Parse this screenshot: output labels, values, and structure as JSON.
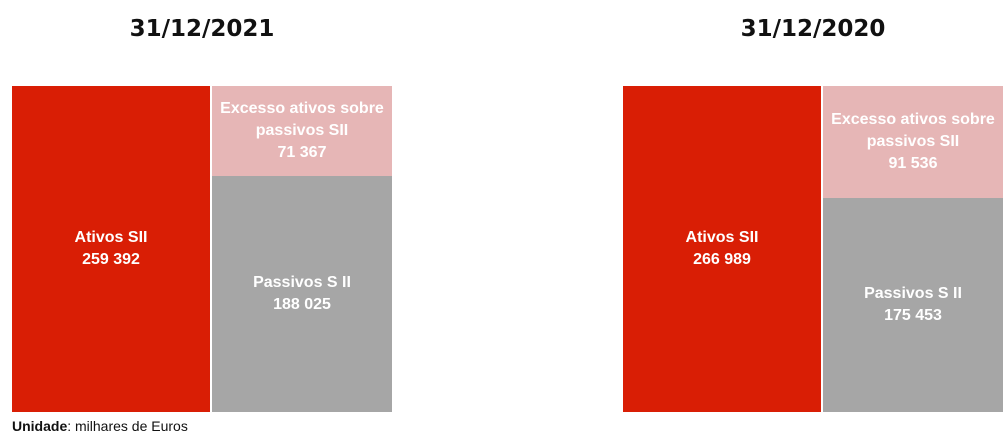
{
  "chart_data": [
    {
      "type": "balance",
      "title": "31/12/2021",
      "series": [
        {
          "name": "Ativos SII",
          "color": "#d91e05",
          "values": [
            259392
          ],
          "value_labels": [
            "259 392"
          ]
        },
        {
          "name": "Excesso ativos sobre passivos SII",
          "color": "#e6b6b6",
          "values": [
            71367
          ],
          "value_labels": [
            "71 367"
          ]
        },
        {
          "name": "Passivos S II",
          "color": "#a6a6a6",
          "values": [
            188025
          ],
          "value_labels": [
            "188 025"
          ]
        }
      ]
    },
    {
      "type": "balance",
      "title": "31/12/2020",
      "series": [
        {
          "name": "Ativos SII",
          "color": "#d91e05",
          "values": [
            266989
          ],
          "value_labels": [
            "266 989"
          ]
        },
        {
          "name": "Excesso ativos sobre passivos SII",
          "color": "#e6b6b6",
          "values": [
            91536
          ],
          "value_labels": [
            "91 536"
          ]
        },
        {
          "name": "Passivos S II",
          "color": "#a6a6a6",
          "values": [
            175453
          ],
          "value_labels": [
            "175 453"
          ]
        }
      ]
    }
  ],
  "note": {
    "label": "Unidade",
    "text": ": milhares de Euros"
  }
}
